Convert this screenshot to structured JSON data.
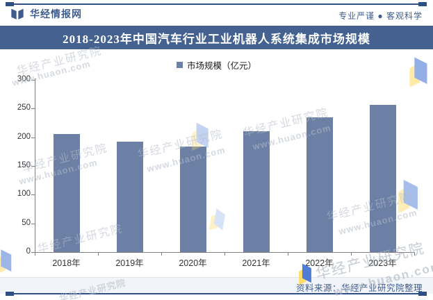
{
  "header": {
    "brand": "华经情报网",
    "tagline": "专业严谨 ● 客观科学"
  },
  "banner": {
    "title": "2018-2023年中国汽车行业工业机器人系统集成市场规模"
  },
  "chart_data": {
    "type": "bar",
    "title": "2018-2023年中国汽车行业工业机器人系统集成市场规模",
    "legend": [
      "市场规模（亿元）"
    ],
    "legend_position": "top",
    "categories": [
      "2018年",
      "2019年",
      "2020年",
      "2021年",
      "2022年",
      "2023年"
    ],
    "values": [
      206,
      192,
      184,
      211,
      235,
      257
    ],
    "unit": "亿元",
    "xlabel": "",
    "ylabel": "",
    "ylim": [
      0,
      300
    ],
    "ytick_step": 50,
    "grid": false,
    "bar_color": "#6C80A6"
  },
  "footer": {
    "source": "资料来源：华经产业研究院整理"
  },
  "watermark": {
    "name": "华经产业研究院",
    "site": "www.huaon.com"
  },
  "colors": {
    "accent_blue": "#3E5C8E",
    "banner_bg": "#44618F",
    "rule_navy": "#2E4E86",
    "bar": "#6C80A6",
    "footer_band": "#F1F4F8"
  }
}
